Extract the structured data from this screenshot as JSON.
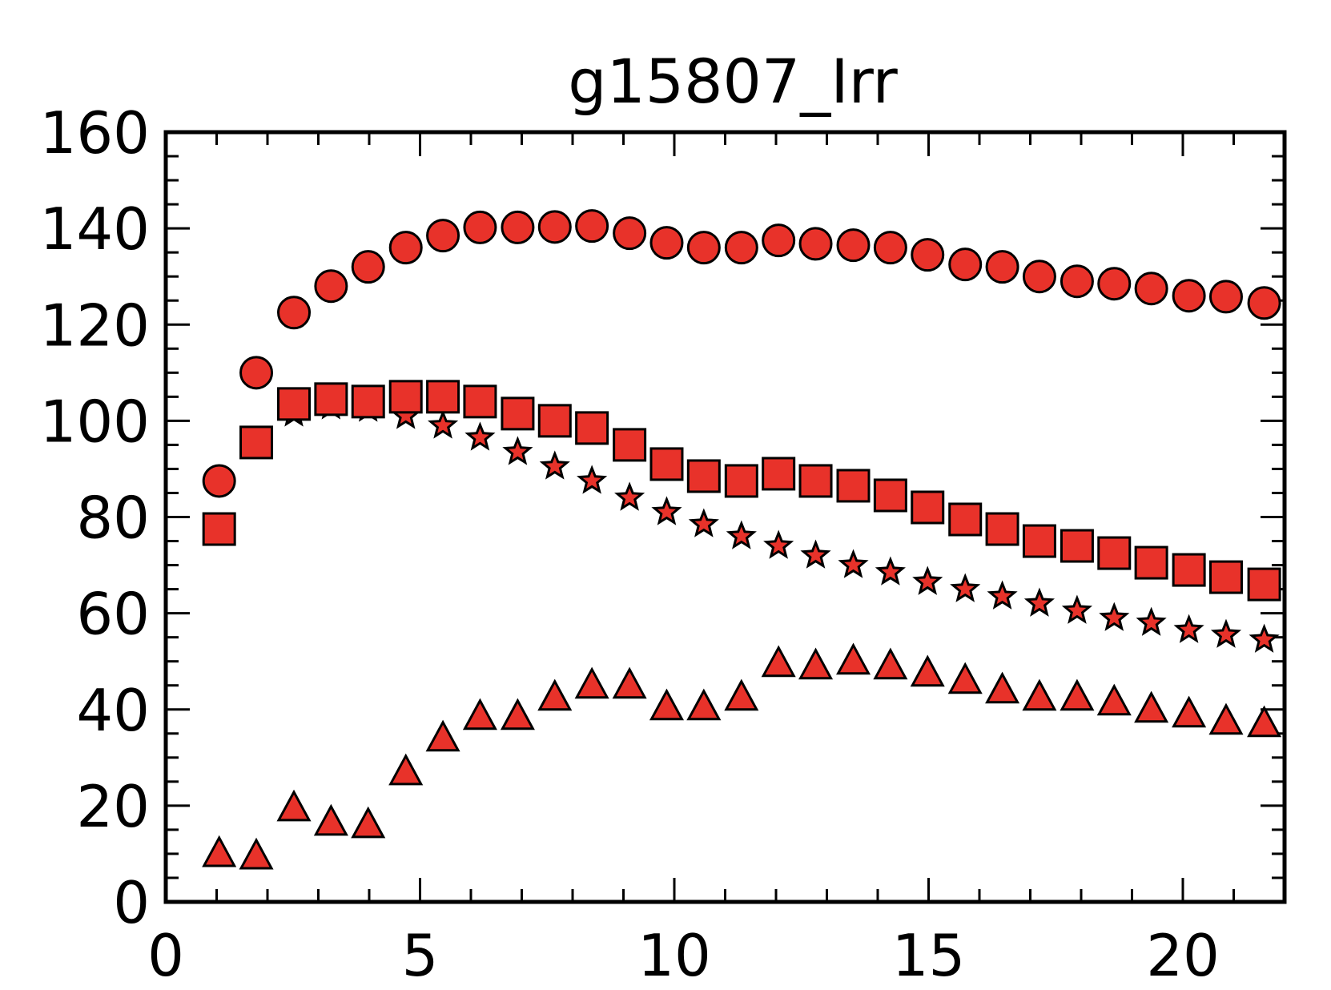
{
  "chart_data": {
    "type": "scatter",
    "title": "g15807_Irr",
    "xlabel": "",
    "ylabel": "",
    "xlim": [
      0,
      22
    ],
    "ylim": [
      0,
      160
    ],
    "xticks": [
      0,
      5,
      10,
      15,
      20
    ],
    "yticks": [
      0,
      20,
      40,
      60,
      80,
      100,
      120,
      140,
      160
    ],
    "xtick_labels": [
      "0",
      "5",
      "10",
      "15",
      "20"
    ],
    "ytick_labels": [
      "0",
      "20",
      "40",
      "60",
      "80",
      "100",
      "120",
      "140",
      "160"
    ],
    "grid": false,
    "legend": "none",
    "marker_color": "#e8322a",
    "edge_color": "#000000",
    "x": [
      1.05,
      1.78,
      2.52,
      3.25,
      3.98,
      4.72,
      5.45,
      6.18,
      6.92,
      7.65,
      8.38,
      9.12,
      9.85,
      10.58,
      11.32,
      12.05,
      12.78,
      13.52,
      14.25,
      14.98,
      15.72,
      16.45,
      17.18,
      17.92,
      18.65,
      19.38,
      20.12,
      20.85,
      21.6
    ],
    "series": [
      {
        "marker": "circle",
        "values": [
          87.5,
          110.0,
          122.5,
          128.0,
          132.0,
          136.0,
          138.5,
          140.2,
          140.2,
          140.3,
          140.5,
          139.0,
          137.0,
          136.0,
          136.0,
          137.5,
          136.8,
          136.5,
          136.0,
          134.5,
          132.5,
          132.0,
          130.0,
          129.0,
          128.5,
          127.5,
          126.0,
          125.8,
          124.5
        ]
      },
      {
        "marker": "square",
        "values": [
          77.5,
          95.5,
          103.5,
          104.5,
          104.0,
          105.0,
          105.0,
          104.0,
          101.5,
          100.0,
          98.5,
          95.0,
          91.0,
          88.5,
          87.5,
          89.0,
          87.5,
          86.5,
          84.5,
          82.0,
          79.5,
          77.5,
          75.0,
          74.0,
          72.5,
          70.5,
          69.0,
          67.5,
          66.0
        ]
      },
      {
        "marker": "star",
        "values": [
          null,
          null,
          101.5,
          103.0,
          102.5,
          101.0,
          99.0,
          96.5,
          93.5,
          90.5,
          87.5,
          84.0,
          81.0,
          78.5,
          76.0,
          74.0,
          72.0,
          70.0,
          68.5,
          66.5,
          65.0,
          63.5,
          62.0,
          60.5,
          59.0,
          58.0,
          56.5,
          55.5,
          54.5
        ]
      },
      {
        "marker": "triangle",
        "values": [
          10.0,
          9.5,
          19.5,
          16.5,
          16.0,
          27.0,
          34.0,
          38.5,
          38.5,
          42.5,
          45.0,
          45.0,
          40.5,
          40.5,
          42.5,
          49.5,
          49.0,
          50.0,
          49.0,
          47.5,
          46.0,
          44.0,
          42.5,
          42.5,
          41.5,
          40.0,
          39.0,
          37.5,
          37.0
        ]
      }
    ]
  }
}
